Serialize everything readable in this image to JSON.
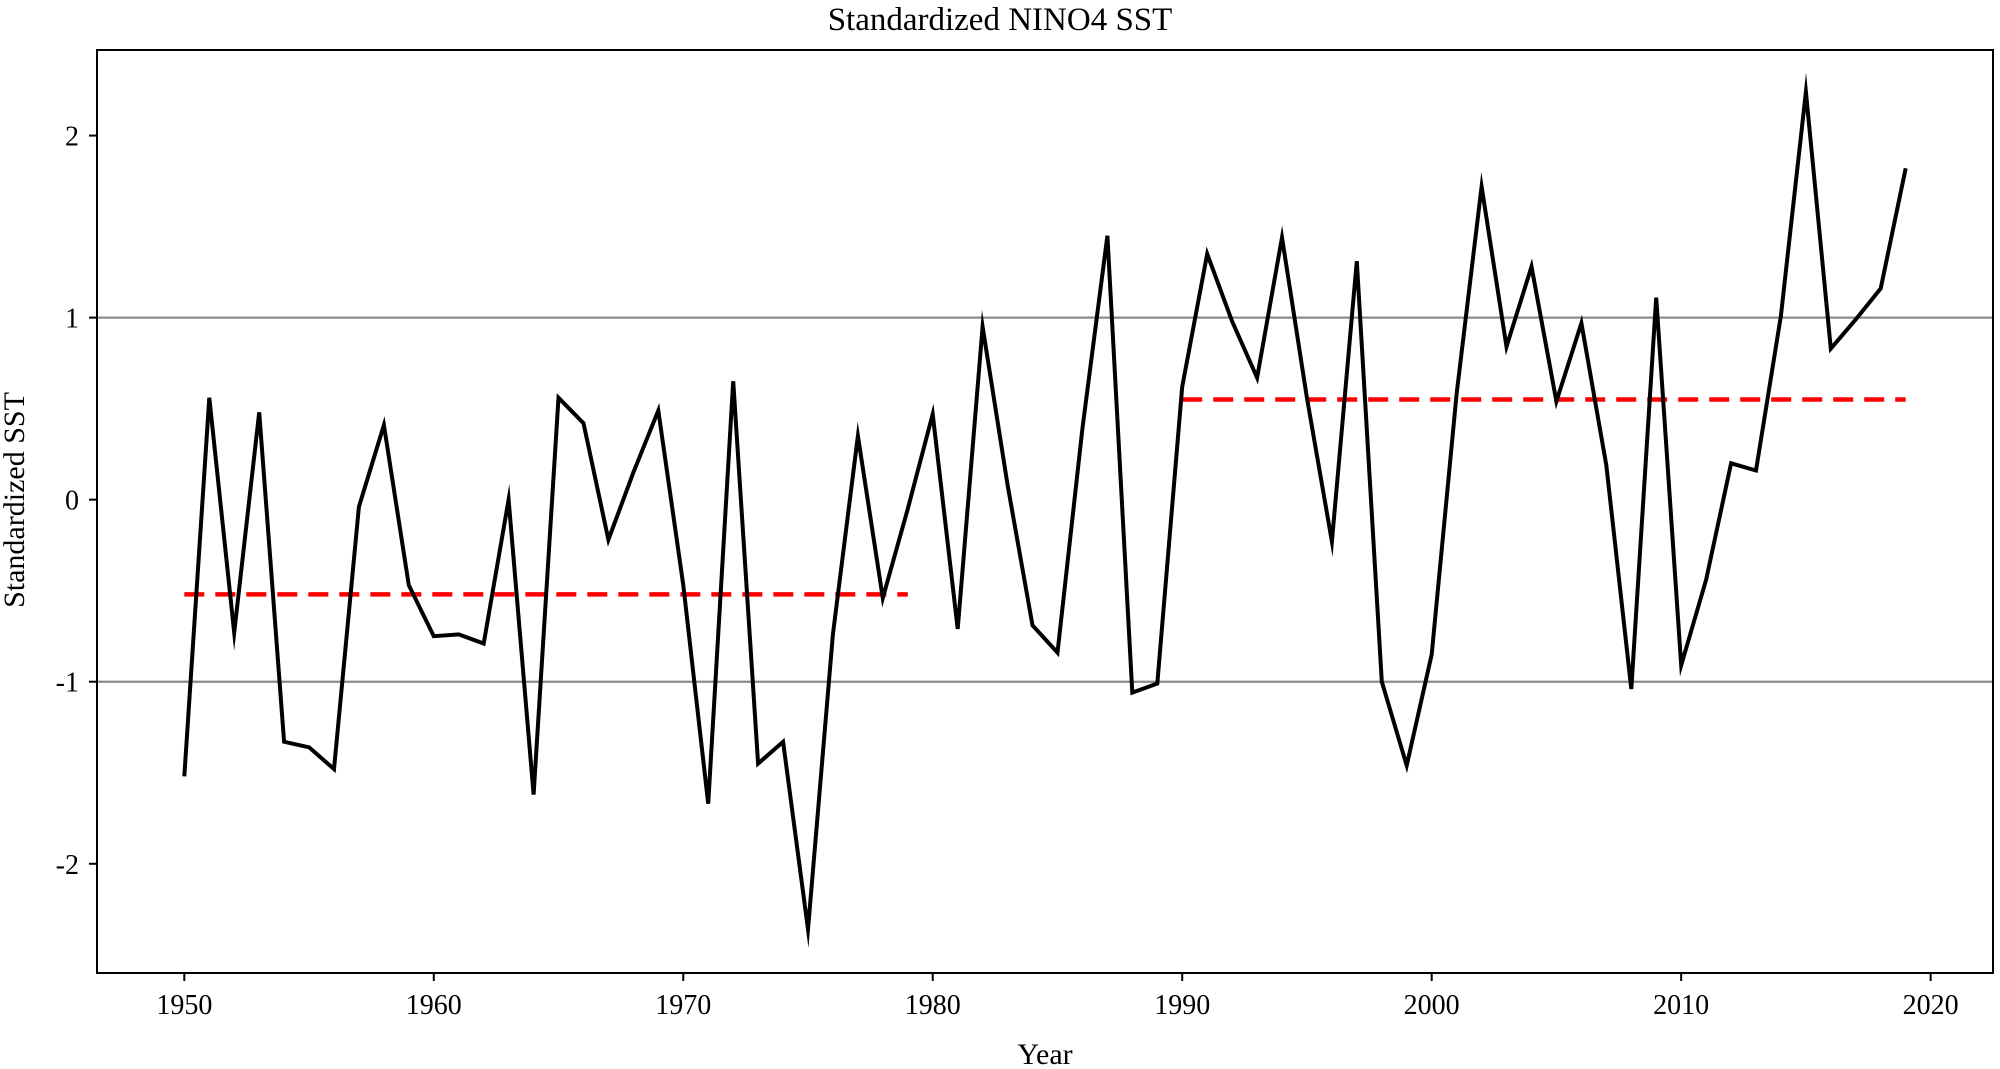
{
  "chart_data": {
    "type": "line",
    "title": "Standardized NINO4 SST",
    "xlabel": "Year",
    "ylabel": "Standardized SST",
    "xlim": [
      1946.5,
      2022.5
    ],
    "ylim": [
      -2.6,
      2.47
    ],
    "xticks": [
      1950,
      1960,
      1970,
      1980,
      1990,
      2000,
      2010,
      2020
    ],
    "yticks": [
      -2,
      -1,
      0,
      1,
      2
    ],
    "ytick_labels": [
      "-2",
      "-1",
      "0",
      "1",
      "2"
    ],
    "grid": false,
    "reference_lines": [
      {
        "y": 1,
        "color": "#8c8c8c"
      },
      {
        "y": -1,
        "color": "#8c8c8c"
      }
    ],
    "mean_segments": [
      {
        "name": "1950-1979 mean",
        "x_start": 1950,
        "x_end": 1979,
        "y": -0.52,
        "color": "#ff0000",
        "style": "dashed"
      },
      {
        "name": "1990-2019 mean",
        "x_start": 1990,
        "x_end": 2019,
        "y": 0.55,
        "color": "#ff0000",
        "style": "dashed"
      }
    ],
    "series": [
      {
        "name": "Standardized NINO4 SST",
        "color": "#000000",
        "x": [
          1950,
          1951,
          1952,
          1953,
          1954,
          1955,
          1956,
          1957,
          1958,
          1959,
          1960,
          1961,
          1962,
          1963,
          1964,
          1965,
          1966,
          1967,
          1968,
          1969,
          1970,
          1971,
          1972,
          1973,
          1974,
          1975,
          1976,
          1977,
          1978,
          1979,
          1980,
          1981,
          1982,
          1983,
          1984,
          1985,
          1986,
          1987,
          1988,
          1989,
          1990,
          1991,
          1992,
          1993,
          1994,
          1995,
          1996,
          1997,
          1998,
          1999,
          2000,
          2001,
          2002,
          2003,
          2004,
          2005,
          2006,
          2007,
          2008,
          2009,
          2010,
          2011,
          2012,
          2013,
          2014,
          2015,
          2016,
          2017,
          2018,
          2019
        ],
        "values": [
          -1.52,
          0.56,
          -0.73,
          0.48,
          -1.33,
          -1.36,
          -1.48,
          -0.04,
          0.41,
          -0.47,
          -0.75,
          -0.74,
          -0.79,
          0.0,
          -1.62,
          0.56,
          0.42,
          -0.22,
          0.15,
          0.49,
          -0.47,
          -1.67,
          0.65,
          -1.45,
          -1.33,
          -2.36,
          -0.74,
          0.35,
          -0.54,
          -0.05,
          0.47,
          -0.71,
          0.95,
          0.08,
          -0.69,
          -0.84,
          0.39,
          1.45,
          -1.06,
          -1.01,
          0.62,
          1.35,
          0.98,
          0.67,
          1.44,
          0.56,
          -0.23,
          1.31,
          -1.0,
          -1.46,
          -0.85,
          0.58,
          1.72,
          0.84,
          1.28,
          0.54,
          0.97,
          0.19,
          -1.04,
          1.11,
          -0.91,
          -0.44,
          0.2,
          0.16,
          1.01,
          2.24,
          0.83,
          0.99,
          1.16,
          1.82
        ]
      }
    ]
  }
}
